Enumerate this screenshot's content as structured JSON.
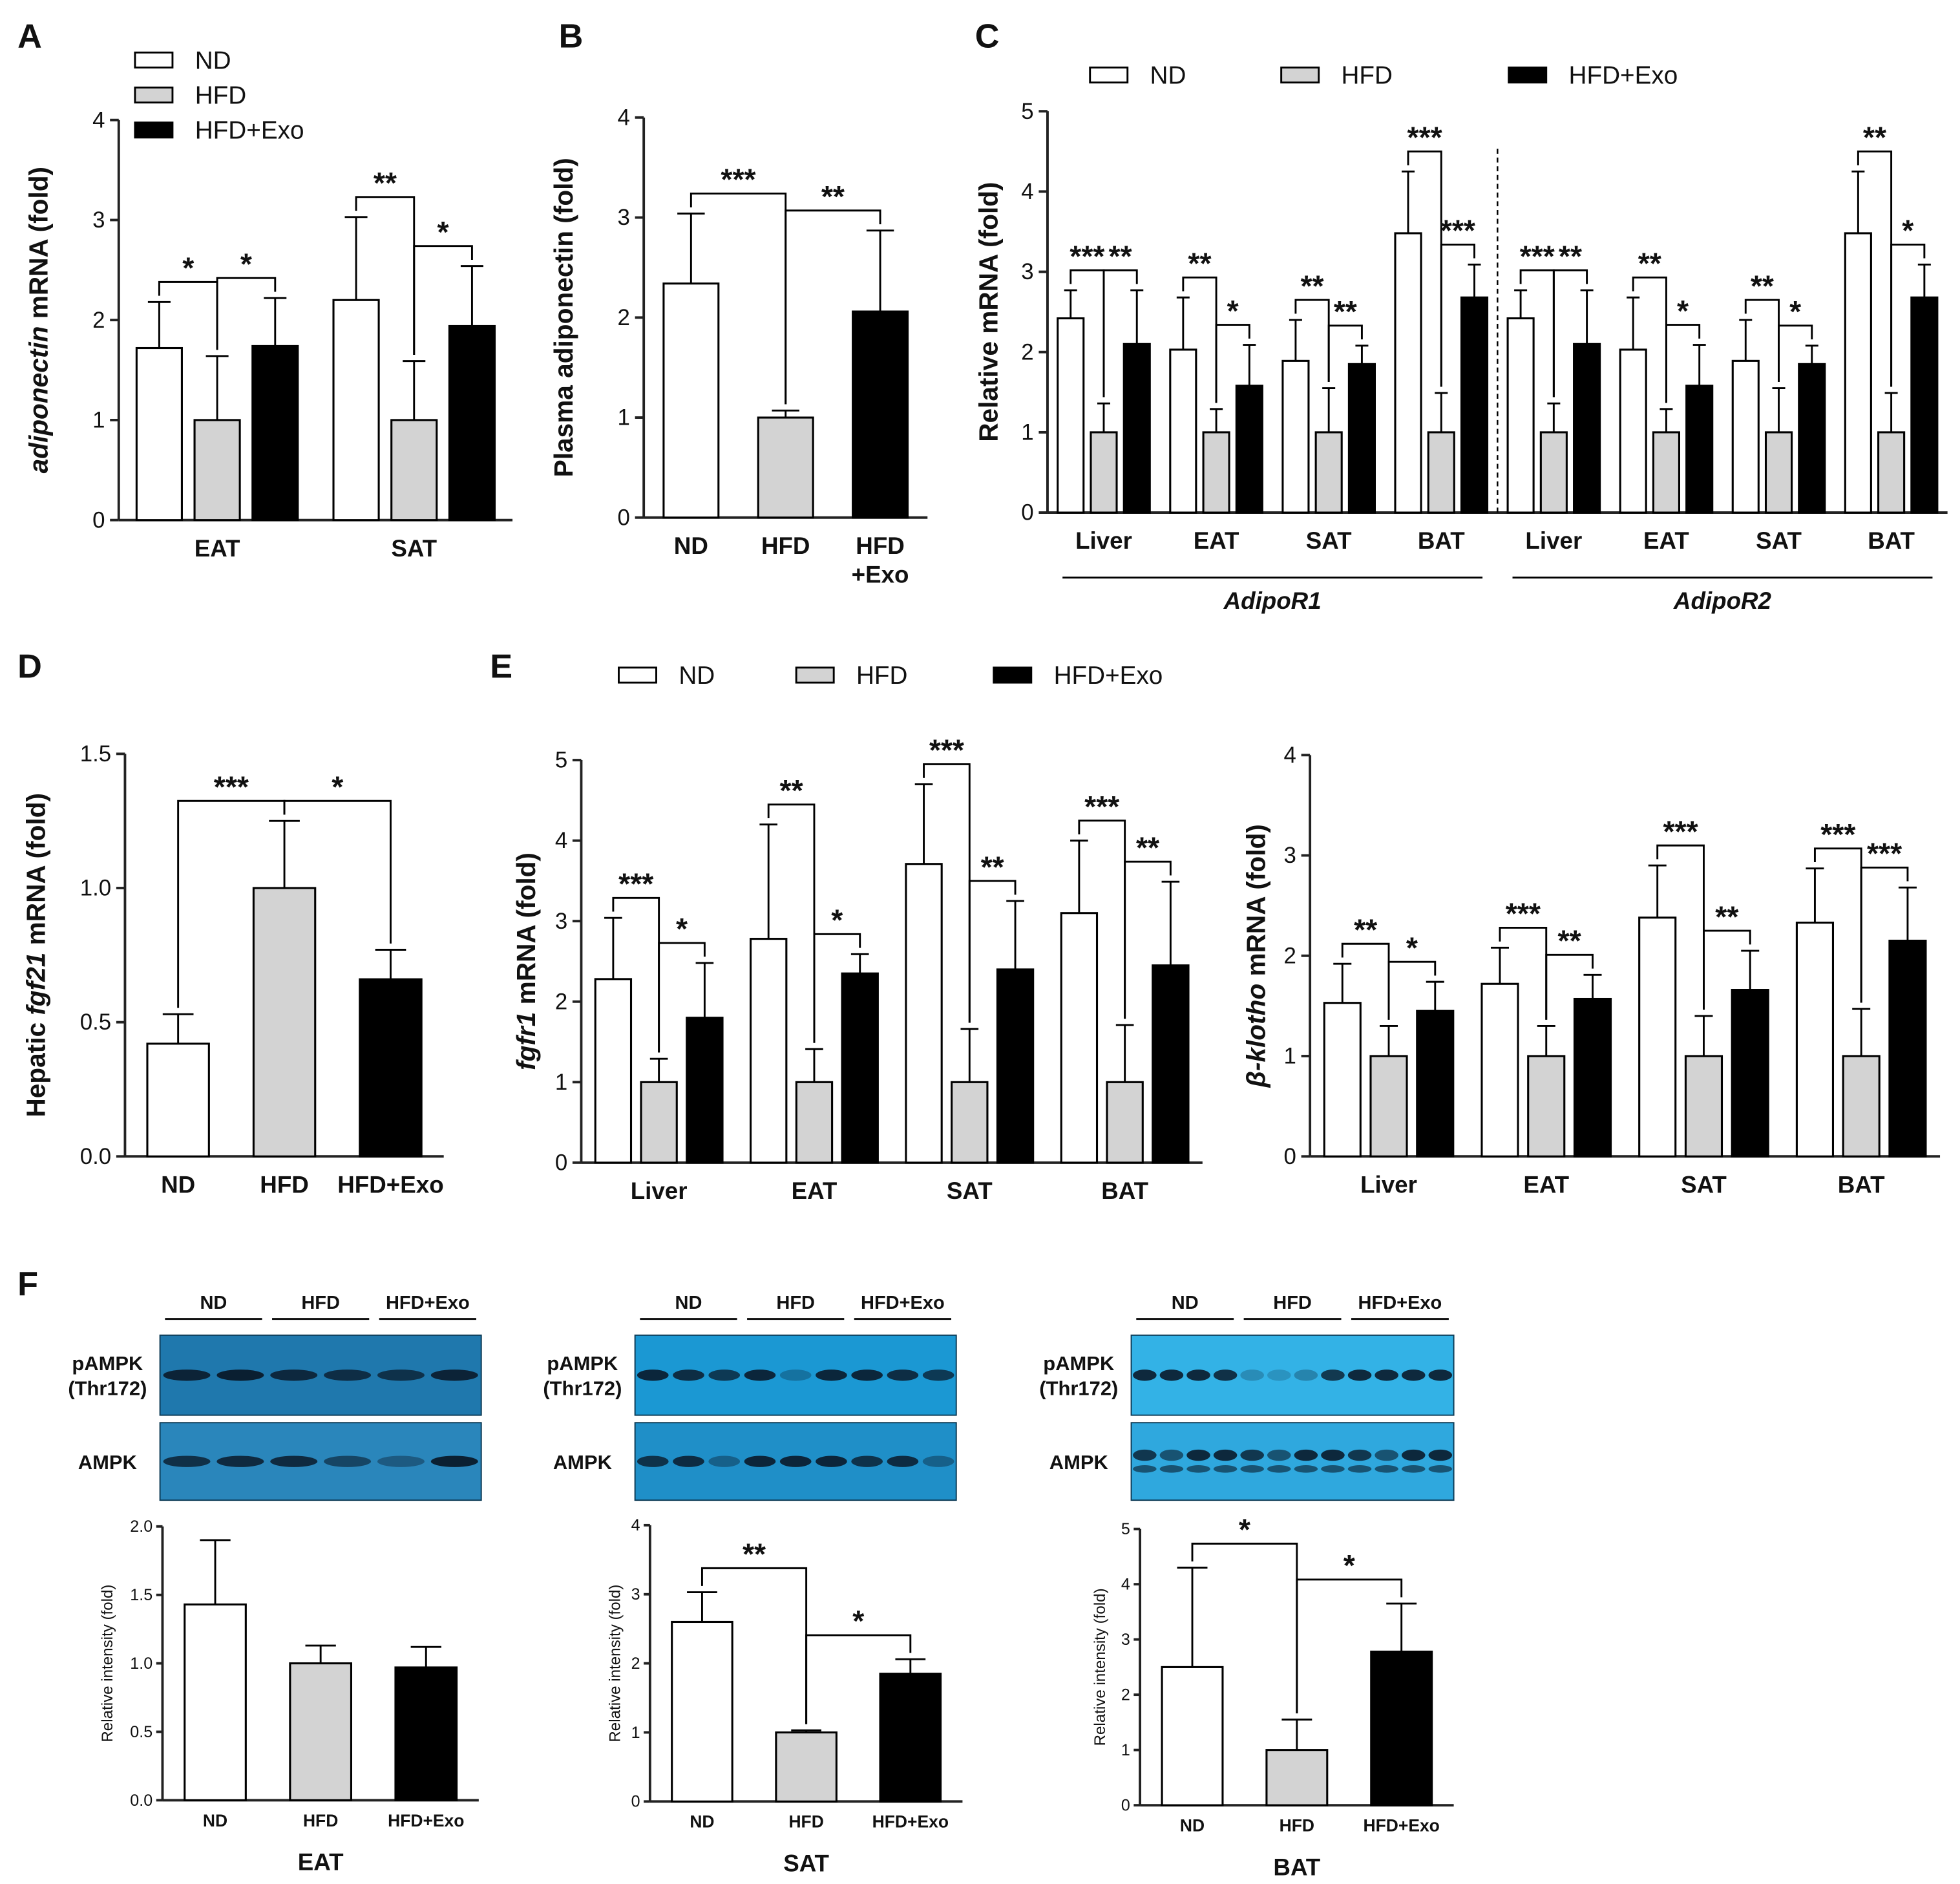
{
  "panels": [
    "A",
    "B",
    "C",
    "D",
    "E",
    "F"
  ],
  "chart_data": [
    {
      "type": "bar",
      "ylabel_parts": [
        {
          "text": "adiponectin",
          "italic": true
        },
        {
          "text": " mRNA (fold)"
        }
      ],
      "categories": [
        "EAT",
        "SAT"
      ],
      "ylim": [
        0,
        4
      ],
      "yticks": [
        0,
        1,
        2,
        3,
        4
      ],
      "legend": true,
      "series": [
        {
          "name": "ND",
          "color": "#ffffff",
          "values": [
            1.72,
            2.2
          ],
          "errors": [
            0.46,
            0.83
          ]
        },
        {
          "name": "HFD",
          "color": "#d3d3d3",
          "values": [
            1.0,
            1.0
          ],
          "errors": [
            0.64,
            0.59
          ]
        },
        {
          "name": "HFD+Exo",
          "color": "#000000",
          "values": [
            1.74,
            1.94
          ],
          "errors": [
            0.48,
            0.6
          ]
        }
      ],
      "annotations": [
        {
          "text": "*",
          "category": 0,
          "between": [
            0,
            1
          ]
        },
        {
          "text": "*",
          "category": 0,
          "between": [
            1,
            2
          ]
        },
        {
          "text": "**",
          "category": 1,
          "between": [
            0,
            1
          ]
        },
        {
          "text": "*",
          "category": 1,
          "between": [
            1,
            2
          ]
        }
      ]
    },
    {
      "type": "bar",
      "ylabel_parts": [
        {
          "text": "Plasma adiponectin (fold)"
        }
      ],
      "categories": [
        "ND",
        "HFD",
        "HFD\n+Exo"
      ],
      "ylim": [
        0,
        4
      ],
      "yticks": [
        0,
        1,
        2,
        3,
        4
      ],
      "values": [
        2.34,
        1.0,
        2.06
      ],
      "errors": [
        0.7,
        0.07,
        0.81
      ],
      "colors": [
        "#ffffff",
        "#d3d3d3",
        "#000000"
      ],
      "annotations": [
        {
          "text": "***",
          "between": [
            0,
            1
          ]
        },
        {
          "text": "**",
          "between": [
            1,
            2
          ]
        }
      ]
    },
    {
      "type": "bar",
      "ylabel_parts": [
        {
          "text": "Relative mRNA (fold)"
        }
      ],
      "categories": [
        "Liver",
        "EAT",
        "SAT",
        "BAT",
        "Liver",
        "EAT",
        "SAT",
        "BAT"
      ],
      "ylim": [
        0,
        5
      ],
      "yticks": [
        0,
        1,
        2,
        3,
        4,
        5
      ],
      "legend": true,
      "groups": [
        {
          "label": "AdipoR1",
          "categories": [
            0,
            3
          ]
        },
        {
          "label": "AdipoR2",
          "categories": [
            4,
            7
          ]
        }
      ],
      "series": [
        {
          "name": "ND",
          "color": "#ffffff",
          "values": [
            2.42,
            2.03,
            1.89,
            3.48,
            2.42,
            2.03,
            1.89,
            3.48
          ],
          "errors": [
            0.35,
            0.65,
            0.51,
            0.77,
            0.35,
            0.65,
            0.51,
            0.77
          ]
        },
        {
          "name": "HFD",
          "color": "#d3d3d3",
          "values": [
            1,
            1,
            1,
            1,
            1,
            1,
            1,
            1
          ],
          "errors": [
            0.36,
            0.29,
            0.55,
            0.49,
            0.36,
            0.29,
            0.55,
            0.49
          ]
        },
        {
          "name": "HFD+Exo",
          "color": "#000000",
          "values": [
            2.1,
            1.58,
            1.85,
            2.68,
            2.1,
            1.58,
            1.85,
            2.68
          ],
          "errors": [
            0.67,
            0.51,
            0.23,
            0.41,
            0.67,
            0.51,
            0.23,
            0.41
          ]
        }
      ],
      "annotations": [
        {
          "text": "***",
          "category": 0,
          "between": [
            0,
            1
          ]
        },
        {
          "text": "**",
          "category": 0,
          "between": [
            1,
            2
          ]
        },
        {
          "text": "**",
          "category": 1,
          "between": [
            0,
            1
          ]
        },
        {
          "text": "*",
          "category": 1,
          "between": [
            1,
            2
          ]
        },
        {
          "text": "**",
          "category": 2,
          "between": [
            0,
            1
          ]
        },
        {
          "text": "**",
          "category": 2,
          "between": [
            1,
            2
          ]
        },
        {
          "text": "***",
          "category": 3,
          "between": [
            0,
            1
          ]
        },
        {
          "text": "***",
          "category": 3,
          "between": [
            1,
            2
          ]
        },
        {
          "text": "***",
          "category": 4,
          "between": [
            0,
            1
          ]
        },
        {
          "text": "**",
          "category": 4,
          "between": [
            1,
            2
          ]
        },
        {
          "text": "**",
          "category": 5,
          "between": [
            0,
            1
          ]
        },
        {
          "text": "*",
          "category": 5,
          "between": [
            1,
            2
          ]
        },
        {
          "text": "**",
          "category": 6,
          "between": [
            0,
            1
          ]
        },
        {
          "text": "*",
          "category": 6,
          "between": [
            1,
            2
          ]
        },
        {
          "text": "**",
          "category": 7,
          "between": [
            0,
            1
          ]
        },
        {
          "text": "*",
          "category": 7,
          "between": [
            1,
            2
          ]
        }
      ]
    },
    {
      "type": "bar",
      "ylabel_parts": [
        {
          "text": "Hepatic "
        },
        {
          "text": "fgf21",
          "italic": true
        },
        {
          "text": " mRNA (fold)"
        }
      ],
      "categories": [
        "ND",
        "HFD",
        "HFD+Exo"
      ],
      "ylim": [
        0,
        1.5
      ],
      "yticks": [
        {
          "value": 0,
          "label": "0.0"
        },
        0.5,
        {
          "value": 1,
          "label": "1.0"
        },
        1.5
      ],
      "values": [
        0.42,
        1.0,
        0.66
      ],
      "errors": [
        0.11,
        0.25,
        0.11
      ],
      "colors": [
        "#ffffff",
        "#d3d3d3",
        "#000000"
      ],
      "annotations": [
        {
          "text": "***",
          "between": [
            0,
            1
          ]
        },
        {
          "text": "*",
          "between": [
            1,
            2
          ]
        }
      ]
    },
    {
      "type": "bar",
      "ylabel_parts": [
        {
          "text": "fgfr1",
          "italic": true
        },
        {
          "text": " mRNA (fold)"
        }
      ],
      "categories": [
        "Liver",
        "EAT",
        "SAT",
        "BAT"
      ],
      "ylim": [
        0,
        5
      ],
      "yticks": [
        0,
        1,
        2,
        3,
        4,
        5
      ],
      "legend": true,
      "series": [
        {
          "name": "ND",
          "color": "#ffffff",
          "values": [
            2.28,
            2.78,
            3.71,
            3.1
          ],
          "errors": [
            0.76,
            1.42,
            0.99,
            0.9
          ]
        },
        {
          "name": "HFD",
          "color": "#d3d3d3",
          "values": [
            1,
            1,
            1,
            1
          ],
          "errors": [
            0.29,
            0.41,
            0.66,
            0.71
          ]
        },
        {
          "name": "HFD+Exo",
          "color": "#000000",
          "values": [
            1.8,
            2.35,
            2.4,
            2.45
          ],
          "errors": [
            0.68,
            0.24,
            0.85,
            1.04
          ]
        }
      ],
      "annotations": [
        {
          "text": "***",
          "category": 0,
          "between": [
            0,
            1
          ]
        },
        {
          "text": "*",
          "category": 0,
          "between": [
            1,
            2
          ]
        },
        {
          "text": "**",
          "category": 1,
          "between": [
            0,
            1
          ]
        },
        {
          "text": "*",
          "category": 1,
          "between": [
            1,
            2
          ]
        },
        {
          "text": "***",
          "category": 2,
          "between": [
            0,
            1
          ]
        },
        {
          "text": "**",
          "category": 2,
          "between": [
            1,
            2
          ]
        },
        {
          "text": "***",
          "category": 3,
          "between": [
            0,
            1
          ]
        },
        {
          "text": "**",
          "category": 3,
          "between": [
            1,
            2
          ]
        }
      ]
    },
    {
      "type": "bar",
      "ylabel_parts": [
        {
          "text": "β-klotho",
          "italic": true
        },
        {
          "text": " mRNA (fold)"
        }
      ],
      "categories": [
        "Liver",
        "EAT",
        "SAT",
        "BAT"
      ],
      "ylim": [
        0,
        4
      ],
      "yticks": [
        0,
        1,
        2,
        3,
        4
      ],
      "series": [
        {
          "color": "#ffffff",
          "values": [
            1.53,
            1.72,
            2.38,
            2.33
          ],
          "errors": [
            0.39,
            0.36,
            0.52,
            0.54
          ]
        },
        {
          "color": "#d3d3d3",
          "values": [
            1,
            1,
            1,
            1
          ],
          "errors": [
            0.3,
            0.3,
            0.4,
            0.47
          ]
        },
        {
          "color": "#000000",
          "values": [
            1.45,
            1.57,
            1.66,
            2.15
          ],
          "errors": [
            0.29,
            0.24,
            0.39,
            0.53
          ]
        }
      ],
      "annotations": [
        {
          "text": "**",
          "category": 0,
          "between": [
            0,
            1
          ]
        },
        {
          "text": "*",
          "category": 0,
          "between": [
            1,
            2
          ]
        },
        {
          "text": "***",
          "category": 1,
          "between": [
            0,
            1
          ]
        },
        {
          "text": "**",
          "category": 1,
          "between": [
            1,
            2
          ]
        },
        {
          "text": "***",
          "category": 2,
          "between": [
            0,
            1
          ]
        },
        {
          "text": "**",
          "category": 2,
          "between": [
            1,
            2
          ]
        },
        {
          "text": "***",
          "category": 3,
          "between": [
            0,
            1
          ]
        },
        {
          "text": "***",
          "category": 3,
          "between": [
            1,
            2
          ]
        }
      ]
    },
    {
      "type": "bar",
      "ylabel_parts": [
        {
          "text": "Relative intensity (fold)"
        }
      ],
      "xlabel": "EAT",
      "categories": [
        "ND",
        "HFD",
        "HFD+Exo"
      ],
      "ylim": [
        0,
        2
      ],
      "yticks": [
        {
          "value": 0,
          "label": "0.0"
        },
        0.5,
        {
          "value": 1,
          "label": "1.0"
        },
        1.5,
        {
          "value": 2,
          "label": "2.0"
        }
      ],
      "values": [
        1.43,
        1.0,
        0.97
      ],
      "errors": [
        0.47,
        0.13,
        0.15
      ],
      "colors": [
        "#ffffff",
        "#d3d3d3",
        "#000000"
      ],
      "annotations": []
    },
    {
      "type": "bar",
      "ylabel_parts": [
        {
          "text": "Relative intensity (fold)"
        }
      ],
      "xlabel": "SAT",
      "categories": [
        "ND",
        "HFD",
        "HFD+Exo"
      ],
      "ylim": [
        0,
        4
      ],
      "yticks": [
        0,
        1,
        2,
        3,
        4
      ],
      "values": [
        2.6,
        1.0,
        1.85
      ],
      "errors": [
        0.43,
        0.03,
        0.21
      ],
      "colors": [
        "#ffffff",
        "#d3d3d3",
        "#000000"
      ],
      "annotations": [
        {
          "text": "**",
          "between": [
            0,
            1
          ]
        },
        {
          "text": "*",
          "between": [
            1,
            2
          ]
        }
      ]
    },
    {
      "type": "bar",
      "ylabel_parts": [
        {
          "text": "Relative intensity (fold)"
        }
      ],
      "xlabel": "BAT",
      "categories": [
        "ND",
        "HFD",
        "HFD+Exo"
      ],
      "ylim": [
        0,
        5
      ],
      "yticks": [
        0,
        1,
        2,
        3,
        4,
        5
      ],
      "values": [
        2.5,
        1.0,
        2.78
      ],
      "errors": [
        1.8,
        0.55,
        0.87
      ],
      "colors": [
        "#ffffff",
        "#d3d3d3",
        "#000000"
      ],
      "annotations": [
        {
          "text": "*",
          "between": [
            0,
            1
          ]
        },
        {
          "text": "*",
          "between": [
            1,
            2
          ]
        }
      ]
    }
  ],
  "blots": [
    {
      "groups": [
        "ND",
        "HFD",
        "HFD+Exo"
      ],
      "rows": [
        [
          "pAMPK",
          "(Thr172)"
        ],
        [
          "AMPK"
        ]
      ]
    },
    {
      "groups": [
        "ND",
        "HFD",
        "HFD+Exo"
      ],
      "rows": [
        [
          "pAMPK",
          "(Thr172)"
        ],
        [
          "AMPK"
        ]
      ]
    },
    {
      "groups": [
        "ND",
        "HFD",
        "HFD+Exo"
      ],
      "rows": [
        [
          "pAMPK",
          "(Thr172)"
        ],
        [
          "AMPK"
        ]
      ]
    }
  ]
}
